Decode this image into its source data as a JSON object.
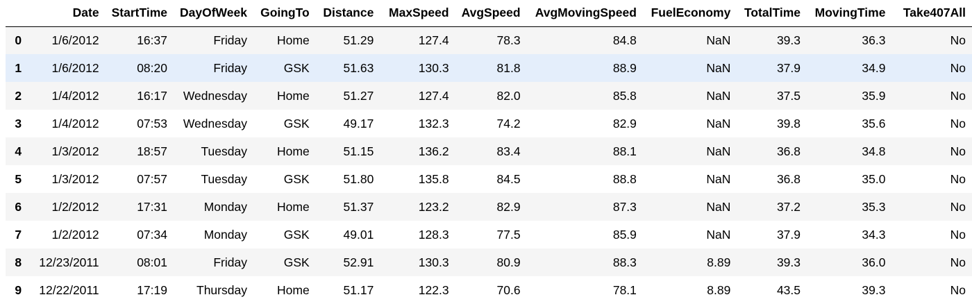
{
  "table": {
    "index_header": "",
    "columns": [
      "Date",
      "StartTime",
      "DayOfWeek",
      "GoingTo",
      "Distance",
      "MaxSpeed",
      "AvgSpeed",
      "AvgMovingSpeed",
      "FuelEconomy",
      "TotalTime",
      "MovingTime",
      "Take407All"
    ],
    "hovered_row": 1,
    "rows": [
      {
        "index": "0",
        "cells": [
          "1/6/2012",
          "16:37",
          "Friday",
          "Home",
          "51.29",
          "127.4",
          "78.3",
          "84.8",
          "NaN",
          "39.3",
          "36.3",
          "No"
        ]
      },
      {
        "index": "1",
        "cells": [
          "1/6/2012",
          "08:20",
          "Friday",
          "GSK",
          "51.63",
          "130.3",
          "81.8",
          "88.9",
          "NaN",
          "37.9",
          "34.9",
          "No"
        ]
      },
      {
        "index": "2",
        "cells": [
          "1/4/2012",
          "16:17",
          "Wednesday",
          "Home",
          "51.27",
          "127.4",
          "82.0",
          "85.8",
          "NaN",
          "37.5",
          "35.9",
          "No"
        ]
      },
      {
        "index": "3",
        "cells": [
          "1/4/2012",
          "07:53",
          "Wednesday",
          "GSK",
          "49.17",
          "132.3",
          "74.2",
          "82.9",
          "NaN",
          "39.8",
          "35.6",
          "No"
        ]
      },
      {
        "index": "4",
        "cells": [
          "1/3/2012",
          "18:57",
          "Tuesday",
          "Home",
          "51.15",
          "136.2",
          "83.4",
          "88.1",
          "NaN",
          "36.8",
          "34.8",
          "No"
        ]
      },
      {
        "index": "5",
        "cells": [
          "1/3/2012",
          "07:57",
          "Tuesday",
          "GSK",
          "51.80",
          "135.8",
          "84.5",
          "88.8",
          "NaN",
          "36.8",
          "35.0",
          "No"
        ]
      },
      {
        "index": "6",
        "cells": [
          "1/2/2012",
          "17:31",
          "Monday",
          "Home",
          "51.37",
          "123.2",
          "82.9",
          "87.3",
          "NaN",
          "37.2",
          "35.3",
          "No"
        ]
      },
      {
        "index": "7",
        "cells": [
          "1/2/2012",
          "07:34",
          "Monday",
          "GSK",
          "49.01",
          "128.3",
          "77.5",
          "85.9",
          "NaN",
          "37.9",
          "34.3",
          "No"
        ]
      },
      {
        "index": "8",
        "cells": [
          "12/23/2011",
          "08:01",
          "Friday",
          "GSK",
          "52.91",
          "130.3",
          "80.9",
          "88.3",
          "8.89",
          "39.3",
          "36.0",
          "No"
        ]
      },
      {
        "index": "9",
        "cells": [
          "12/22/2011",
          "17:19",
          "Thursday",
          "Home",
          "51.17",
          "122.3",
          "70.6",
          "78.1",
          "8.89",
          "43.5",
          "39.3",
          "No"
        ]
      }
    ]
  },
  "colors": {
    "stripe": "#f5f5f5",
    "hover": "#e4eefb",
    "header_rule": "#000000"
  }
}
